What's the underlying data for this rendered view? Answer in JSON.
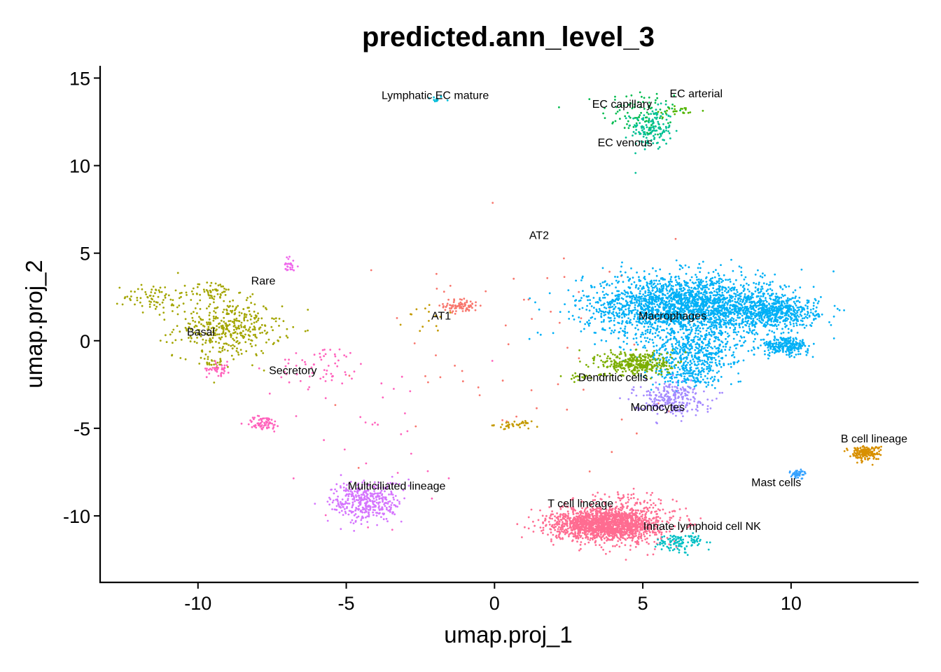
{
  "chart_data": {
    "type": "scatter",
    "title": "predicted.ann_level_3",
    "xlabel": "umap.proj_1",
    "ylabel": "umap.proj_2",
    "xlim": [
      -13.3,
      14.3
    ],
    "ylim": [
      -13.8,
      15.7
    ],
    "x_ticks": [
      -10,
      -5,
      0,
      5,
      10
    ],
    "y_ticks": [
      -10,
      -5,
      0,
      5,
      10,
      15
    ],
    "x_tick_labels": [
      "-10",
      "-5",
      "0",
      "5",
      "10"
    ],
    "y_tick_labels": [
      "-10",
      "-5",
      "0",
      "5",
      "10",
      "15"
    ],
    "grid": false,
    "legend": "none",
    "clusters": [
      {
        "label": "Lymphatic EC mature",
        "x": -2.0,
        "y": 13.8,
        "color": "#00BCD8",
        "blobs": [
          [
            -2.0,
            13.8,
            0.15,
            0.1,
            12
          ]
        ]
      },
      {
        "label": "EC capillary",
        "x": 4.3,
        "y": 13.3,
        "color": "#00BB4E",
        "blobs": [
          [
            5.0,
            13.0,
            0.7,
            0.7,
            90
          ]
        ]
      },
      {
        "label": "EC arterial",
        "x": 6.8,
        "y": 13.9,
        "color": "#53B400",
        "blobs": [
          [
            6.1,
            13.1,
            0.4,
            0.2,
            25
          ]
        ]
      },
      {
        "label": "EC venous",
        "x": 4.4,
        "y": 11.1,
        "color": "#00C094",
        "blobs": [
          [
            5.3,
            12.1,
            0.35,
            0.6,
            140
          ]
        ]
      },
      {
        "label": "AT2",
        "x": 1.5,
        "y": 5.8,
        "color": "#F8766D",
        "blobs": [
          [
            -1.1,
            2.0,
            0.3,
            0.2,
            80
          ],
          [
            0.3,
            -1.0,
            3.0,
            3.5,
            60
          ]
        ]
      },
      {
        "label": "AT1",
        "x": -1.8,
        "y": 1.2,
        "color": "#C49A00",
        "blobs": [
          [
            0.6,
            -4.8,
            0.3,
            0.1,
            40
          ],
          [
            -2.0,
            1.2,
            0.5,
            0.4,
            15
          ]
        ]
      },
      {
        "label": "Rare",
        "x": -7.8,
        "y": 3.2,
        "color": "#EF67EB",
        "blobs": [
          [
            -6.9,
            4.3,
            0.15,
            0.25,
            25
          ]
        ]
      },
      {
        "label": "Basal",
        "x": -9.9,
        "y": 0.3,
        "color": "#A3A500",
        "blobs": [
          [
            -9.0,
            0.7,
            0.9,
            0.8,
            380
          ],
          [
            -11.5,
            2.5,
            0.5,
            0.4,
            70
          ],
          [
            -9.5,
            2.8,
            0.4,
            0.3,
            60
          ],
          [
            -9.5,
            -1.2,
            0.2,
            0.2,
            25
          ]
        ]
      },
      {
        "label": "Secretory",
        "x": -6.8,
        "y": -1.9,
        "color": "#FF62BC",
        "blobs": [
          [
            -7.8,
            -4.7,
            0.3,
            0.2,
            70
          ],
          [
            -5.8,
            -1.5,
            0.8,
            0.6,
            60
          ],
          [
            -9.3,
            -1.6,
            0.2,
            0.2,
            40
          ],
          [
            -4.0,
            -5.0,
            2.0,
            2.5,
            30
          ]
        ]
      },
      {
        "label": "Macrophages",
        "x": 6.0,
        "y": 1.2,
        "color": "#00B0F6",
        "blobs": [
          [
            6.0,
            2.0,
            1.5,
            0.9,
            1600
          ],
          [
            7.8,
            1.8,
            1.4,
            0.8,
            800
          ],
          [
            9.5,
            1.6,
            0.7,
            0.4,
            400
          ],
          [
            9.8,
            -0.3,
            0.4,
            0.25,
            250
          ],
          [
            6.7,
            -0.7,
            0.8,
            0.6,
            400
          ],
          [
            6.5,
            -2.0,
            0.5,
            0.4,
            150
          ]
        ]
      },
      {
        "label": "Dendritic cells",
        "x": 4.0,
        "y": -2.3,
        "color": "#7CAE00",
        "blobs": [
          [
            4.8,
            -1.3,
            0.6,
            0.35,
            350
          ],
          [
            2.9,
            -2.0,
            0.3,
            0.1,
            20
          ]
        ]
      },
      {
        "label": "Monocytes",
        "x": 5.5,
        "y": -4.0,
        "color": "#A58AFF",
        "blobs": [
          [
            5.9,
            -3.3,
            0.6,
            0.45,
            260
          ]
        ]
      },
      {
        "label": "B cell lineage",
        "x": 12.8,
        "y": -5.8,
        "color": "#D89000",
        "blobs": [
          [
            12.5,
            -6.4,
            0.25,
            0.2,
            180
          ]
        ]
      },
      {
        "label": "Mast cells",
        "x": 9.5,
        "y": -8.3,
        "color": "#35A2FF",
        "blobs": [
          [
            10.2,
            -7.6,
            0.15,
            0.12,
            45
          ]
        ]
      },
      {
        "label": "Multiciliated lineage",
        "x": -3.3,
        "y": -8.5,
        "color": "#D575FE",
        "blobs": [
          [
            -4.3,
            -9.2,
            0.6,
            0.6,
            380
          ]
        ]
      },
      {
        "label": "T cell lineage",
        "x": 2.9,
        "y": -9.5,
        "color": "#FF6C91",
        "blobs": [
          [
            3.7,
            -10.5,
            0.9,
            0.45,
            1500
          ],
          [
            4.5,
            -10.2,
            0.8,
            0.8,
            300
          ]
        ]
      },
      {
        "label": "Innate lymphoid cell NK",
        "x": 7.0,
        "y": -10.8,
        "color": "#00BFC4",
        "blobs": [
          [
            6.2,
            -11.5,
            0.4,
            0.25,
            110
          ]
        ]
      }
    ]
  }
}
